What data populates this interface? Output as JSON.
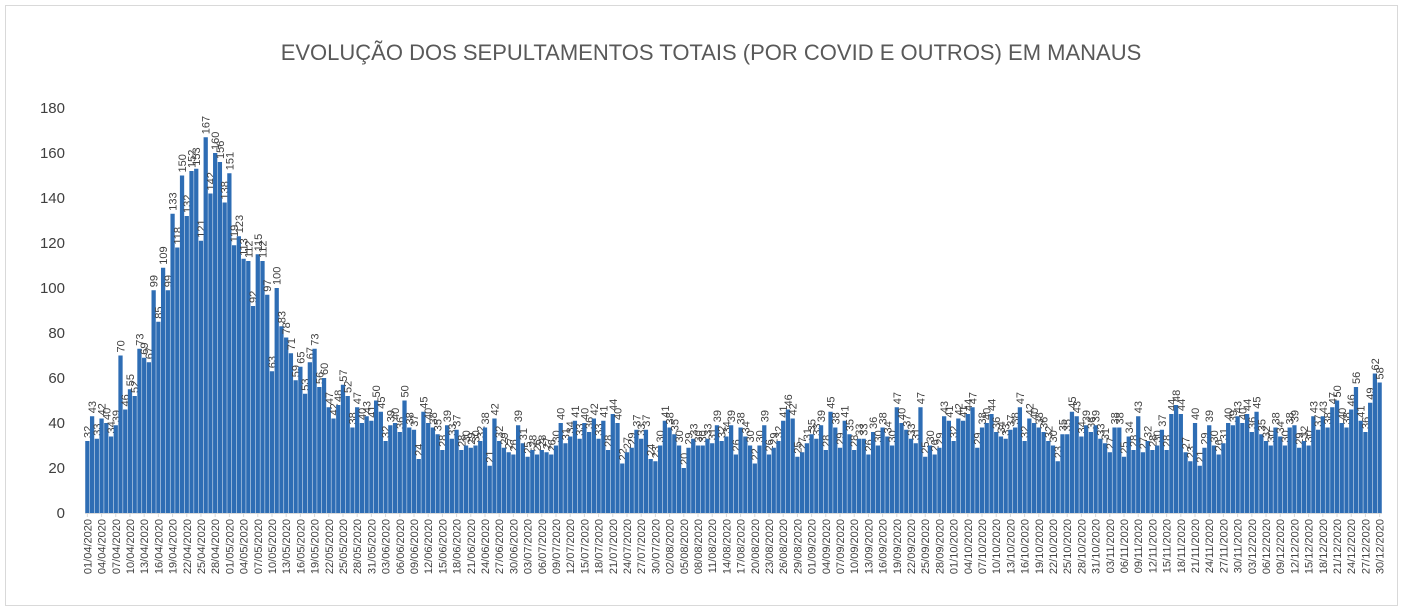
{
  "chart_data": {
    "type": "bar",
    "title": "EVOLUÇÃO DOS SEPULTAMENTOS TOTAIS (POR COVID E OUTROS) EM MANAUS",
    "color": "#2e6db4",
    "ylim": [
      0,
      180
    ],
    "yticks": [
      0,
      20,
      40,
      60,
      80,
      100,
      120,
      140,
      160,
      180
    ],
    "grid": false,
    "value_labels_shown": true,
    "categories": [
      "01/04/2020",
      null,
      null,
      "04/04/2020",
      null,
      null,
      "07/04/2020",
      null,
      null,
      "10/04/2020",
      null,
      null,
      "13/04/2020",
      null,
      null,
      "16/04/2020",
      null,
      null,
      "19/04/2020",
      null,
      null,
      "22/04/2020",
      null,
      null,
      "25/04/2020",
      null,
      null,
      "28/04/2020",
      null,
      null,
      "01/05/2020",
      null,
      null,
      "04/05/2020",
      null,
      null,
      "07/05/2020",
      null,
      null,
      "10/05/2020",
      null,
      null,
      "13/05/2020",
      null,
      null,
      "16/05/2020",
      null,
      null,
      "19/05/2020",
      null,
      null,
      "22/05/2020",
      null,
      null,
      "25/05/2020",
      null,
      null,
      "28/05/2020",
      null,
      null,
      "31/05/2020",
      null,
      null,
      "03/06/2020",
      null,
      null,
      "06/06/2020",
      null,
      null,
      "09/06/2020",
      null,
      null,
      "12/06/2020",
      null,
      null,
      "15/06/2020",
      null,
      null,
      "18/06/2020",
      null,
      null,
      "21/06/2020",
      null,
      null,
      "24/06/2020",
      null,
      null,
      "27/06/2020",
      null,
      null,
      "30/06/2020",
      null,
      null,
      "03/07/2020",
      null,
      null,
      "06/07/2020",
      null,
      null,
      "09/07/2020",
      null,
      null,
      "12/07/2020",
      null,
      null,
      "15/07/2020",
      null,
      null,
      "18/07/2020",
      null,
      null,
      "21/07/2020",
      null,
      null,
      "24/07/2020",
      null,
      null,
      "27/07/2020",
      null,
      null,
      "30/07/2020",
      null,
      null,
      "02/08/2020",
      null,
      null,
      "05/08/2020",
      null,
      null,
      "08/08/2020",
      null,
      null,
      "11/08/2020",
      null,
      null,
      "14/08/2020",
      null,
      null,
      "17/08/2020",
      null,
      null,
      "20/08/2020",
      null,
      null,
      "23/08/2020",
      null,
      null,
      "26/08/2020",
      null,
      null,
      "29/08/2020",
      null,
      null,
      "01/09/2020",
      null,
      null,
      "04/09/2020",
      null,
      null,
      "07/09/2020",
      null,
      null,
      "10/09/2020",
      null,
      null,
      "13/09/2020",
      null,
      null,
      "16/09/2020",
      null,
      null,
      "19/09/2020",
      null,
      null,
      "22/09/2020",
      null,
      null,
      "25/09/2020",
      null,
      null,
      "28/09/2020",
      null,
      null,
      "01/10/2020",
      null,
      null,
      "04/10/2020",
      null,
      null,
      "07/10/2020",
      null,
      null,
      "10/10/2020",
      null,
      null,
      "13/10/2020",
      null,
      null,
      "16/10/2020",
      null,
      null,
      "19/10/2020",
      null,
      null,
      "22/10/2020",
      null,
      null,
      "25/10/2020",
      null,
      null,
      "28/10/2020",
      null,
      null,
      "31/10/2020",
      null,
      null,
      "03/11/2020",
      null,
      null,
      "06/11/2020",
      null,
      null,
      "09/11/2020",
      null,
      null,
      "12/11/2020",
      null,
      null,
      "15/11/2020",
      null,
      null,
      "18/11/2020",
      null,
      null,
      "21/11/2020",
      null,
      null,
      "24/11/2020",
      null,
      null,
      "27/11/2020",
      null,
      null,
      "30/11/2020",
      null,
      null,
      "03/12/2020",
      null,
      null,
      "06/12/2020",
      null,
      null,
      "09/12/2020",
      null,
      null,
      "12/12/2020",
      null,
      null,
      "15/12/2020",
      null,
      null,
      "18/12/2020",
      null,
      null,
      "21/12/2020",
      null,
      null,
      "24/12/2020",
      null,
      null,
      "27/12/2020",
      null,
      null,
      "30/12/2020"
    ],
    "values": [
      32,
      43,
      33,
      42,
      40,
      34,
      39,
      70,
      46,
      55,
      52,
      73,
      69,
      67,
      99,
      85,
      109,
      99,
      133,
      118,
      150,
      132,
      152,
      153,
      121,
      167,
      142,
      160,
      156,
      138,
      151,
      119,
      123,
      113,
      112,
      92,
      115,
      112,
      97,
      63,
      100,
      83,
      78,
      71,
      59,
      65,
      53,
      67,
      73,
      56,
      60,
      47,
      42,
      48,
      57,
      52,
      38,
      47,
      40,
      43,
      41,
      50,
      45,
      32,
      39,
      40,
      36,
      50,
      38,
      37,
      24,
      45,
      40,
      38,
      35,
      28,
      39,
      33,
      37,
      28,
      30,
      29,
      30,
      32,
      38,
      21,
      42,
      32,
      29,
      27,
      26,
      39,
      31,
      25,
      28,
      26,
      28,
      27,
      26,
      30,
      40,
      31,
      34,
      41,
      33,
      40,
      36,
      42,
      33,
      41,
      28,
      44,
      40,
      22,
      27,
      29,
      37,
      33,
      37,
      24,
      23,
      30,
      41,
      38,
      35,
      30,
      20,
      29,
      33,
      30,
      30,
      33,
      31,
      39,
      32,
      34,
      39,
      26,
      38,
      34,
      30,
      22,
      30,
      39,
      26,
      29,
      32,
      41,
      46,
      42,
      25,
      27,
      31,
      35,
      33,
      39,
      28,
      45,
      38,
      29,
      41,
      35,
      28,
      33,
      33,
      26,
      36,
      30,
      38,
      34,
      30,
      47,
      40,
      37,
      33,
      31,
      47,
      25,
      30,
      26,
      29,
      43,
      41,
      32,
      42,
      41,
      44,
      47,
      29,
      38,
      40,
      44,
      36,
      34,
      33,
      37,
      38,
      47,
      32,
      42,
      40,
      38,
      36,
      32,
      30,
      23,
      35,
      35,
      45,
      43,
      34,
      39,
      36,
      39,
      33,
      31,
      27,
      38,
      38,
      25,
      34,
      28,
      43,
      27,
      32,
      28,
      30,
      37,
      28,
      44,
      48,
      44,
      27,
      23,
      40,
      21,
      29,
      39,
      30,
      26,
      31,
      40,
      39,
      43,
      40,
      44,
      36,
      45,
      35,
      32,
      30,
      38,
      34,
      30,
      38,
      39,
      29,
      32,
      30,
      43,
      37,
      43,
      38,
      47,
      50,
      40,
      38,
      46,
      56,
      41,
      36,
      49,
      62,
      58
    ]
  }
}
